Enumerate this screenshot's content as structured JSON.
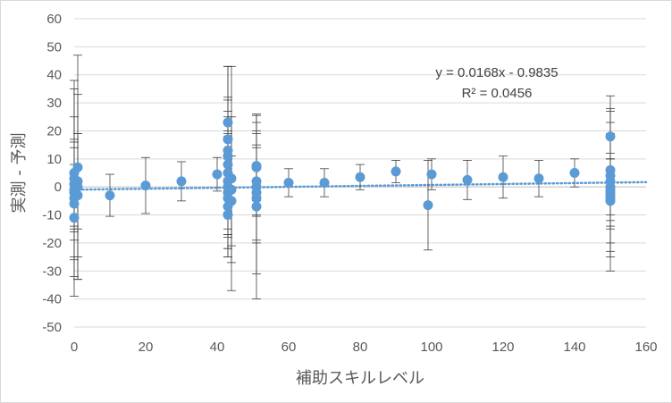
{
  "chart_data": {
    "type": "scatter",
    "title": "",
    "xlabel": "補助スキルレベル",
    "ylabel": "実測 - 予測",
    "xlim": [
      0,
      160
    ],
    "ylim": [
      -50,
      60
    ],
    "x_ticks": [
      "0",
      "20",
      "40",
      "60",
      "80",
      "100",
      "120",
      "140",
      "160"
    ],
    "y_ticks": [
      "60",
      "50",
      "40",
      "30",
      "20",
      "10",
      "0",
      "-10",
      "-20",
      "-30",
      "-40",
      "-50"
    ],
    "gridlines": "horizontal",
    "legend": "none",
    "marker_color": "#5b9bd5",
    "errorbar_color": "#404040",
    "trendline": {
      "type": "linear",
      "style": "dotted",
      "color": "#5b9bd5",
      "slope": 0.0168,
      "intercept": -0.9835,
      "equation_label": "y = 0.0168x - 0.9835",
      "r2_label": "R² = 0.0456"
    },
    "points": [
      {
        "x": 0,
        "y": 5,
        "err": 20
      },
      {
        "x": 0,
        "y": 3,
        "err": 35
      },
      {
        "x": 0,
        "y": 1,
        "err": 15
      },
      {
        "x": 0,
        "y": -1,
        "err": 18
      },
      {
        "x": 0,
        "y": -2,
        "err": 37
      },
      {
        "x": 0,
        "y": -4,
        "err": 12
      },
      {
        "x": 0,
        "y": -6,
        "err": 20
      },
      {
        "x": 0,
        "y": -11,
        "err": 14
      },
      {
        "x": 1,
        "y": 7,
        "err": 40
      },
      {
        "x": 1,
        "y": 2,
        "err": 17
      },
      {
        "x": 1,
        "y": 0,
        "err": 33
      },
      {
        "x": 1,
        "y": -3,
        "err": 22
      },
      {
        "x": 10,
        "y": -3,
        "err": 7.5
      },
      {
        "x": 20,
        "y": 0.5,
        "err": 10
      },
      {
        "x": 30,
        "y": 2,
        "err": 7
      },
      {
        "x": 40,
        "y": 4.5,
        "err": 6
      },
      {
        "x": 43,
        "y": 23,
        "err": 20
      },
      {
        "x": 43,
        "y": 17,
        "err": 15
      },
      {
        "x": 43,
        "y": 13,
        "err": 30
      },
      {
        "x": 43,
        "y": 11,
        "err": 20
      },
      {
        "x": 43,
        "y": 8,
        "err": 12
      },
      {
        "x": 43,
        "y": 5,
        "err": 22
      },
      {
        "x": 43,
        "y": 2,
        "err": 17
      },
      {
        "x": 43,
        "y": 0,
        "err": 25
      },
      {
        "x": 43,
        "y": -2,
        "err": 20
      },
      {
        "x": 43,
        "y": -4,
        "err": 14
      },
      {
        "x": 43,
        "y": -7,
        "err": 18
      },
      {
        "x": 43,
        "y": -10,
        "err": 12
      },
      {
        "x": 44,
        "y": 3,
        "err": 40
      },
      {
        "x": 44,
        "y": -1,
        "err": 26
      },
      {
        "x": 44,
        "y": -5,
        "err": 16
      },
      {
        "x": 51,
        "y": 7.5,
        "err": 18
      },
      {
        "x": 51,
        "y": 7,
        "err": 12
      },
      {
        "x": 51,
        "y": 2,
        "err": 12
      },
      {
        "x": 51,
        "y": 0,
        "err": 20
      },
      {
        "x": 51,
        "y": -2,
        "err": 17
      },
      {
        "x": 51,
        "y": -4,
        "err": 27
      },
      {
        "x": 51,
        "y": -7,
        "err": 33
      },
      {
        "x": 60,
        "y": 1.5,
        "err": 5
      },
      {
        "x": 70,
        "y": 1.5,
        "err": 5
      },
      {
        "x": 80,
        "y": 3.5,
        "err": 4.5
      },
      {
        "x": 90,
        "y": 5.5,
        "err": 4
      },
      {
        "x": 99,
        "y": -6.5,
        "err": 16
      },
      {
        "x": 100,
        "y": 4.5,
        "err": 5.5
      },
      {
        "x": 110,
        "y": 2.5,
        "err": 7
      },
      {
        "x": 120,
        "y": 3.5,
        "err": 7.5
      },
      {
        "x": 130,
        "y": 3,
        "err": 6.5
      },
      {
        "x": 140,
        "y": 5,
        "err": 5
      },
      {
        "x": 150,
        "y": 18,
        "err": 14.5
      },
      {
        "x": 150,
        "y": 6,
        "err": 6
      },
      {
        "x": 150,
        "y": 4,
        "err": 19
      },
      {
        "x": 150,
        "y": 2,
        "err": 25
      },
      {
        "x": 150,
        "y": 0,
        "err": 10
      },
      {
        "x": 150,
        "y": -1,
        "err": 29
      },
      {
        "x": 150,
        "y": -2,
        "err": 12
      },
      {
        "x": 150,
        "y": -3,
        "err": 22
      },
      {
        "x": 150,
        "y": -4,
        "err": 8
      },
      {
        "x": 150,
        "y": -5,
        "err": 15
      }
    ]
  }
}
